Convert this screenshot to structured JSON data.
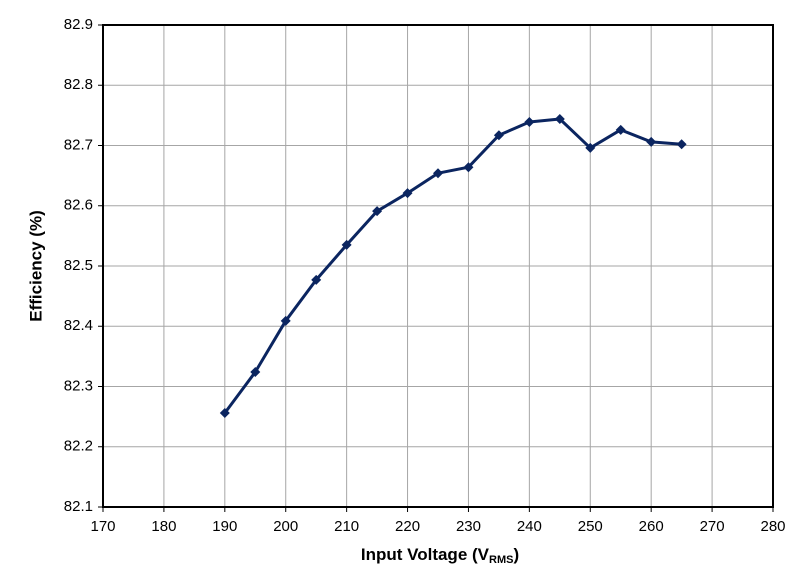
{
  "chart_data": {
    "type": "line",
    "xlabel": [
      "Input Voltage (V",
      "RMS",
      ")"
    ],
    "ylabel": "Efficiency (%)",
    "x": [
      190,
      195,
      200,
      205,
      210,
      215,
      220,
      225,
      230,
      235,
      240,
      245,
      250,
      255,
      260,
      265
    ],
    "series": [
      {
        "color": "#0b2560",
        "values": [
          82.256,
          82.324,
          82.409,
          82.477,
          82.535,
          82.591,
          82.621,
          82.654,
          82.664,
          82.717,
          82.739,
          82.744,
          82.696,
          82.726,
          82.706,
          82.702
        ]
      }
    ],
    "xlim": [
      170,
      280
    ],
    "xticks": [
      170,
      180,
      190,
      200,
      210,
      220,
      230,
      240,
      250,
      260,
      270,
      280
    ],
    "ylim": [
      82.1,
      82.9
    ],
    "yticks": [
      82.1,
      82.2,
      82.3,
      82.4,
      82.5,
      82.6,
      82.7,
      82.8,
      82.9
    ],
    "grid": true
  }
}
